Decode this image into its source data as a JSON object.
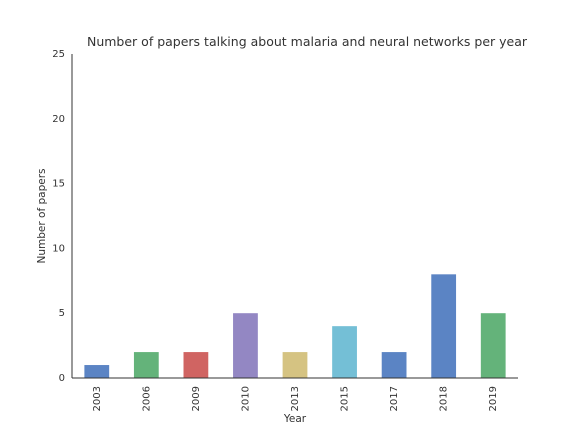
{
  "chart_data": {
    "type": "bar",
    "title": "Number of papers talking about malaria and neural networks per year",
    "xlabel": "Year",
    "ylabel": "Number of papers",
    "categories": [
      "2003",
      "2006",
      "2009",
      "2010",
      "2013",
      "2015",
      "2017",
      "2018",
      "2019"
    ],
    "values": [
      1,
      2,
      2,
      5,
      2,
      4,
      2,
      8,
      5
    ],
    "bar_colors": [
      "#5b84c4",
      "#64b37a",
      "#d06462",
      "#9387c3",
      "#d5c382",
      "#74bfd6",
      "#5b84c4",
      "#5b84c4",
      "#64b37a"
    ],
    "ylim": [
      0,
      25
    ],
    "yticks": [
      0,
      5,
      10,
      15,
      20,
      25
    ],
    "grid": false
  }
}
